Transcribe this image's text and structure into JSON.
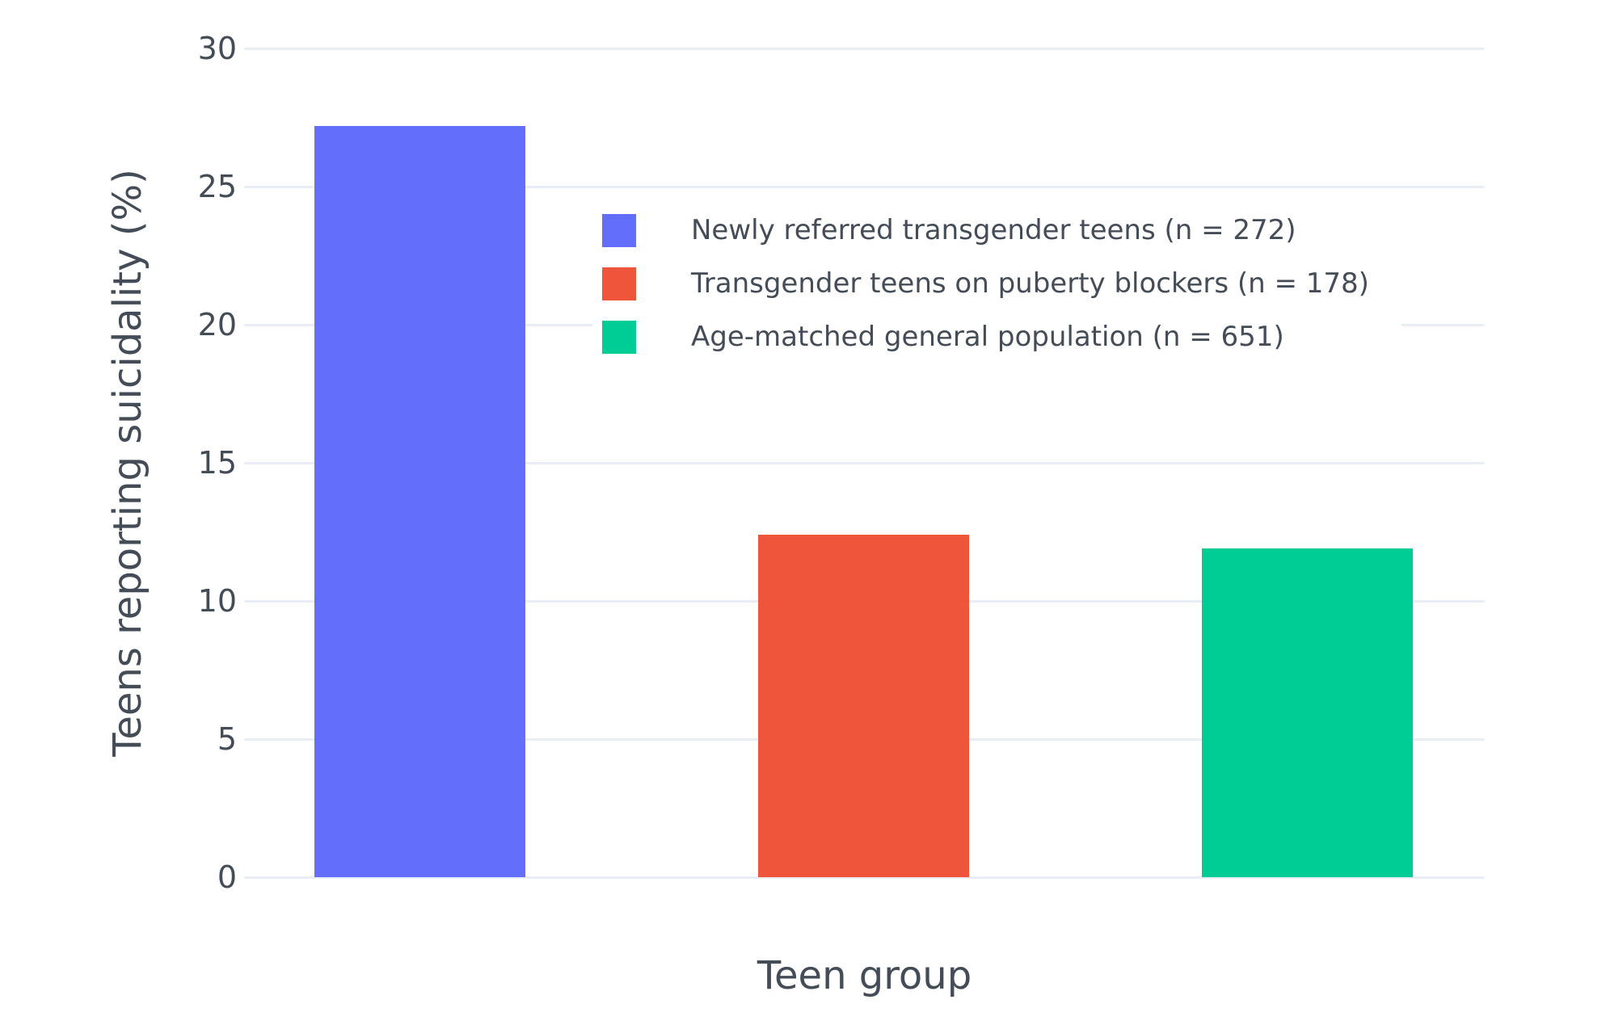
{
  "colors": {
    "background": "#ffffff",
    "gridline": "#e9eef6",
    "text": "#444c57",
    "legend_background": "#ffffff"
  },
  "chart_data": {
    "type": "bar",
    "title": "",
    "xlabel": "Teen group",
    "ylabel": "Teens reporting suicidality (%)",
    "ylim": [
      0,
      30
    ],
    "yticks": [
      0,
      5,
      10,
      15,
      20,
      25,
      30
    ],
    "grid": true,
    "x_tick_labels": [],
    "legend_position": "inside upper-center-right",
    "categories": [
      "Newly referred transgender teens (n = 272)",
      "Transgender teens on puberty blockers (n = 178)",
      "Age-matched general population (n = 651)"
    ],
    "values": [
      27.2,
      12.4,
      11.9
    ],
    "bar_colors": [
      "#636efa",
      "#ef553b",
      "#00cc96"
    ],
    "legend_entries": [
      "Newly referred transgender teens (n = 272)",
      "Transgender teens on puberty blockers (n = 178)",
      "Age-matched general population (n = 651)"
    ]
  }
}
